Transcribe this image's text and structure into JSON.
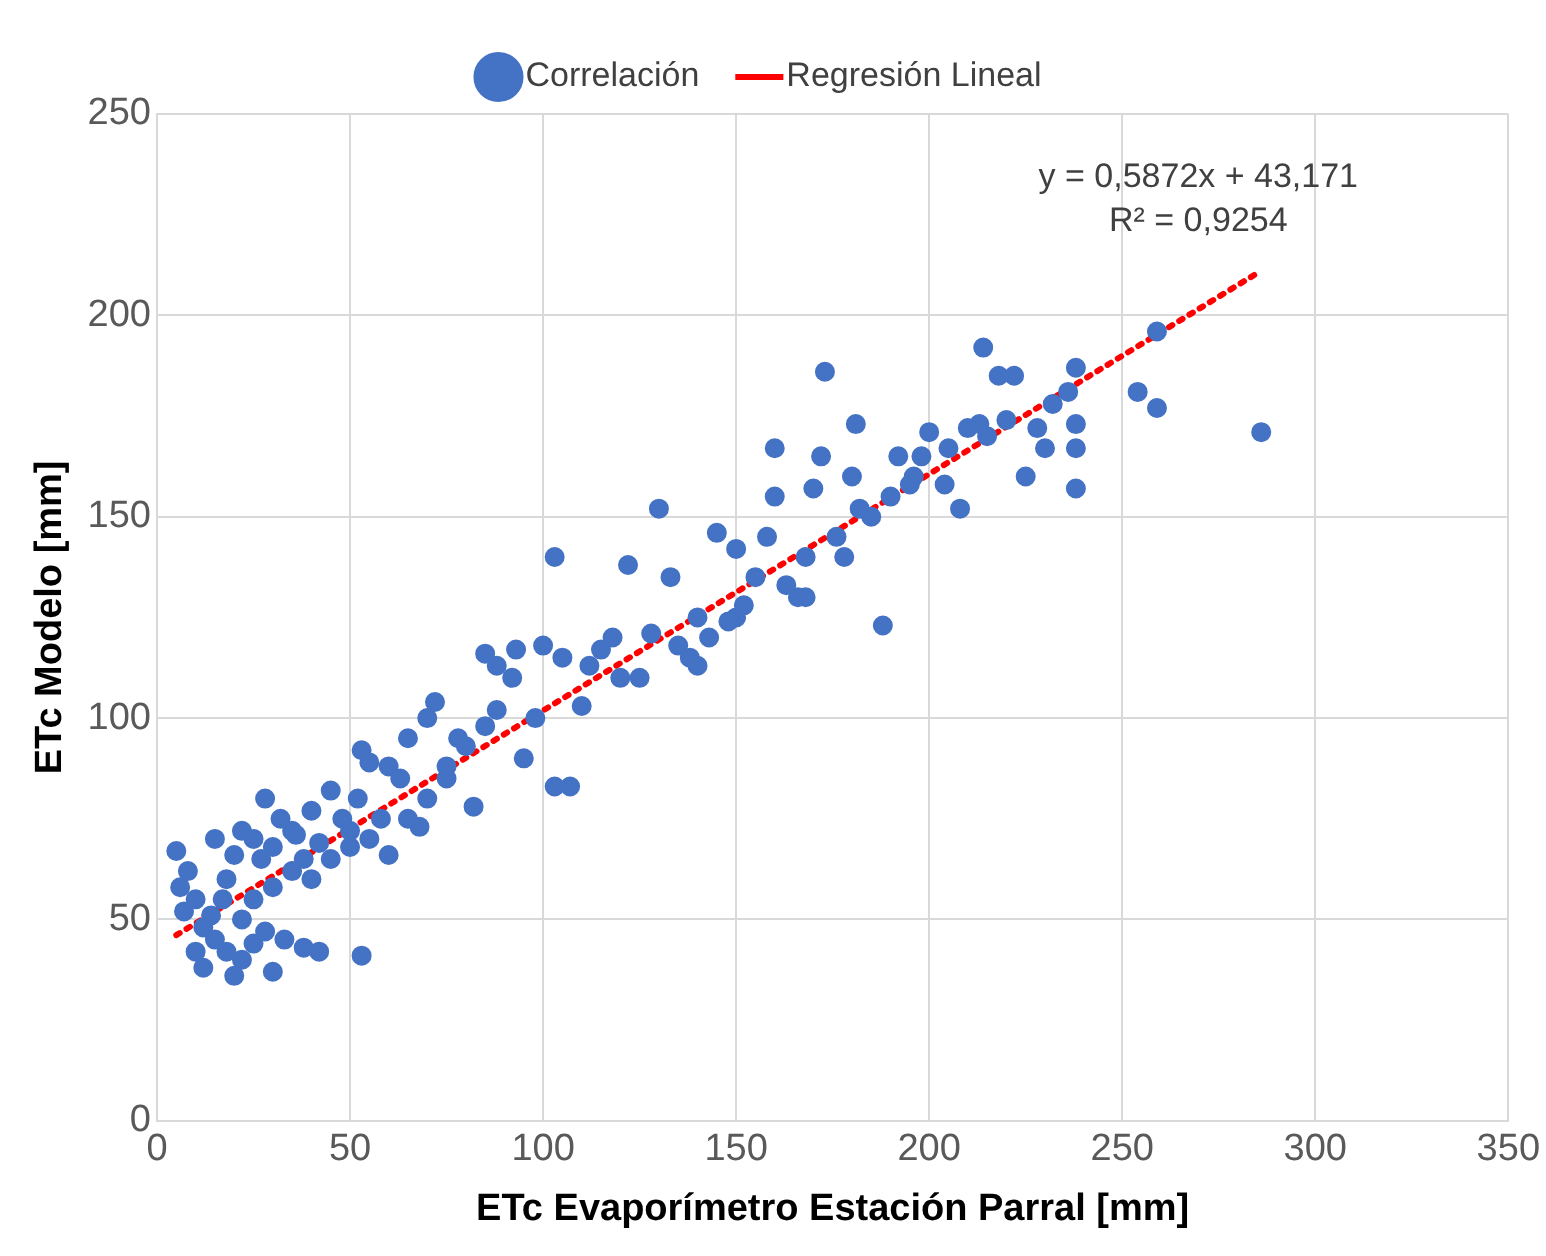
{
  "chart_data": {
    "type": "scatter",
    "xlabel": "ETc Evaporímetro Estación Parral [mm]",
    "ylabel": "ETc Modelo [mm]",
    "xlim": [
      0,
      350
    ],
    "xticks": [
      0,
      50,
      100,
      150,
      200,
      250,
      300,
      350
    ],
    "ylim": [
      0,
      250
    ],
    "yticks": [
      0,
      50,
      100,
      150,
      200,
      250
    ],
    "grid": true,
    "legend": "top",
    "marker": "circle",
    "annotations": [
      "y = 0,5872x + 43,171",
      "R² = 0,9254"
    ],
    "series": [
      {
        "name": "Correlación",
        "color": "#4472c4",
        "x": [
          286,
          259,
          254,
          259,
          238,
          238,
          238,
          238,
          236,
          230,
          225,
          222,
          218,
          214,
          213,
          210,
          208,
          204,
          200,
          196,
          192,
          190,
          188,
          185,
          181,
          180,
          176,
          173,
          172,
          170,
          168,
          166,
          160,
          160,
          158,
          155,
          150,
          150,
          145,
          143,
          140,
          138,
          133,
          130,
          128,
          125,
          122,
          118,
          112,
          110,
          105,
          103,
          107,
          103,
          98,
          95,
          92,
          88,
          85,
          85,
          82,
          78,
          75,
          72,
          70,
          68,
          65,
          63,
          60,
          58,
          55,
          53,
          52,
          50,
          48,
          45,
          42,
          40,
          38,
          36,
          35,
          32,
          30,
          28,
          27,
          25,
          22,
          20,
          18,
          17,
          15,
          14,
          12,
          10,
          8,
          6,
          5,
          7,
          10,
          12,
          15,
          18,
          20,
          22,
          25,
          28,
          30,
          33,
          38,
          42,
          53,
          22,
          25,
          30,
          35,
          40,
          45,
          50,
          55,
          60,
          65,
          70,
          75,
          80,
          88,
          93,
          100,
          115,
          120,
          135,
          140,
          148,
          152,
          163,
          168,
          178,
          182,
          195,
          198,
          205,
          215,
          220,
          228,
          232
        ],
        "values": [
          171,
          177,
          181,
          196,
          187,
          173,
          167,
          157,
          181,
          167,
          160,
          185,
          185,
          192,
          173,
          172,
          152,
          158,
          171,
          160,
          165,
          155,
          123,
          150,
          173,
          160,
          145,
          186,
          165,
          157,
          140,
          130,
          167,
          155,
          145,
          135,
          125,
          142,
          146,
          120,
          125,
          115,
          135,
          152,
          121,
          110,
          138,
          120,
          113,
          103,
          115,
          140,
          83,
          83,
          100,
          90,
          110,
          113,
          116,
          98,
          78,
          95,
          85,
          104,
          100,
          73,
          95,
          85,
          88,
          75,
          89,
          92,
          80,
          72,
          75,
          82,
          69,
          77,
          65,
          71,
          62,
          75,
          68,
          80,
          65,
          70,
          72,
          66,
          60,
          55,
          70,
          51,
          48,
          55,
          62,
          58,
          67,
          52,
          42,
          38,
          45,
          42,
          36,
          40,
          44,
          47,
          37,
          45,
          43,
          42,
          41,
          50,
          55,
          58,
          72,
          60,
          65,
          68,
          70,
          66,
          75,
          80,
          88,
          93,
          102,
          117,
          118,
          117,
          110,
          118,
          113,
          124,
          128,
          133,
          130,
          140,
          152,
          158,
          165,
          167,
          170,
          174,
          172,
          178
        ]
      },
      {
        "name": "Regresión Lineal",
        "type": "line",
        "color": "#ff0000",
        "line_style": "dotted",
        "marker": "none",
        "x": [
          5,
          285
        ],
        "values": [
          46.1,
          210.5
        ]
      }
    ]
  }
}
